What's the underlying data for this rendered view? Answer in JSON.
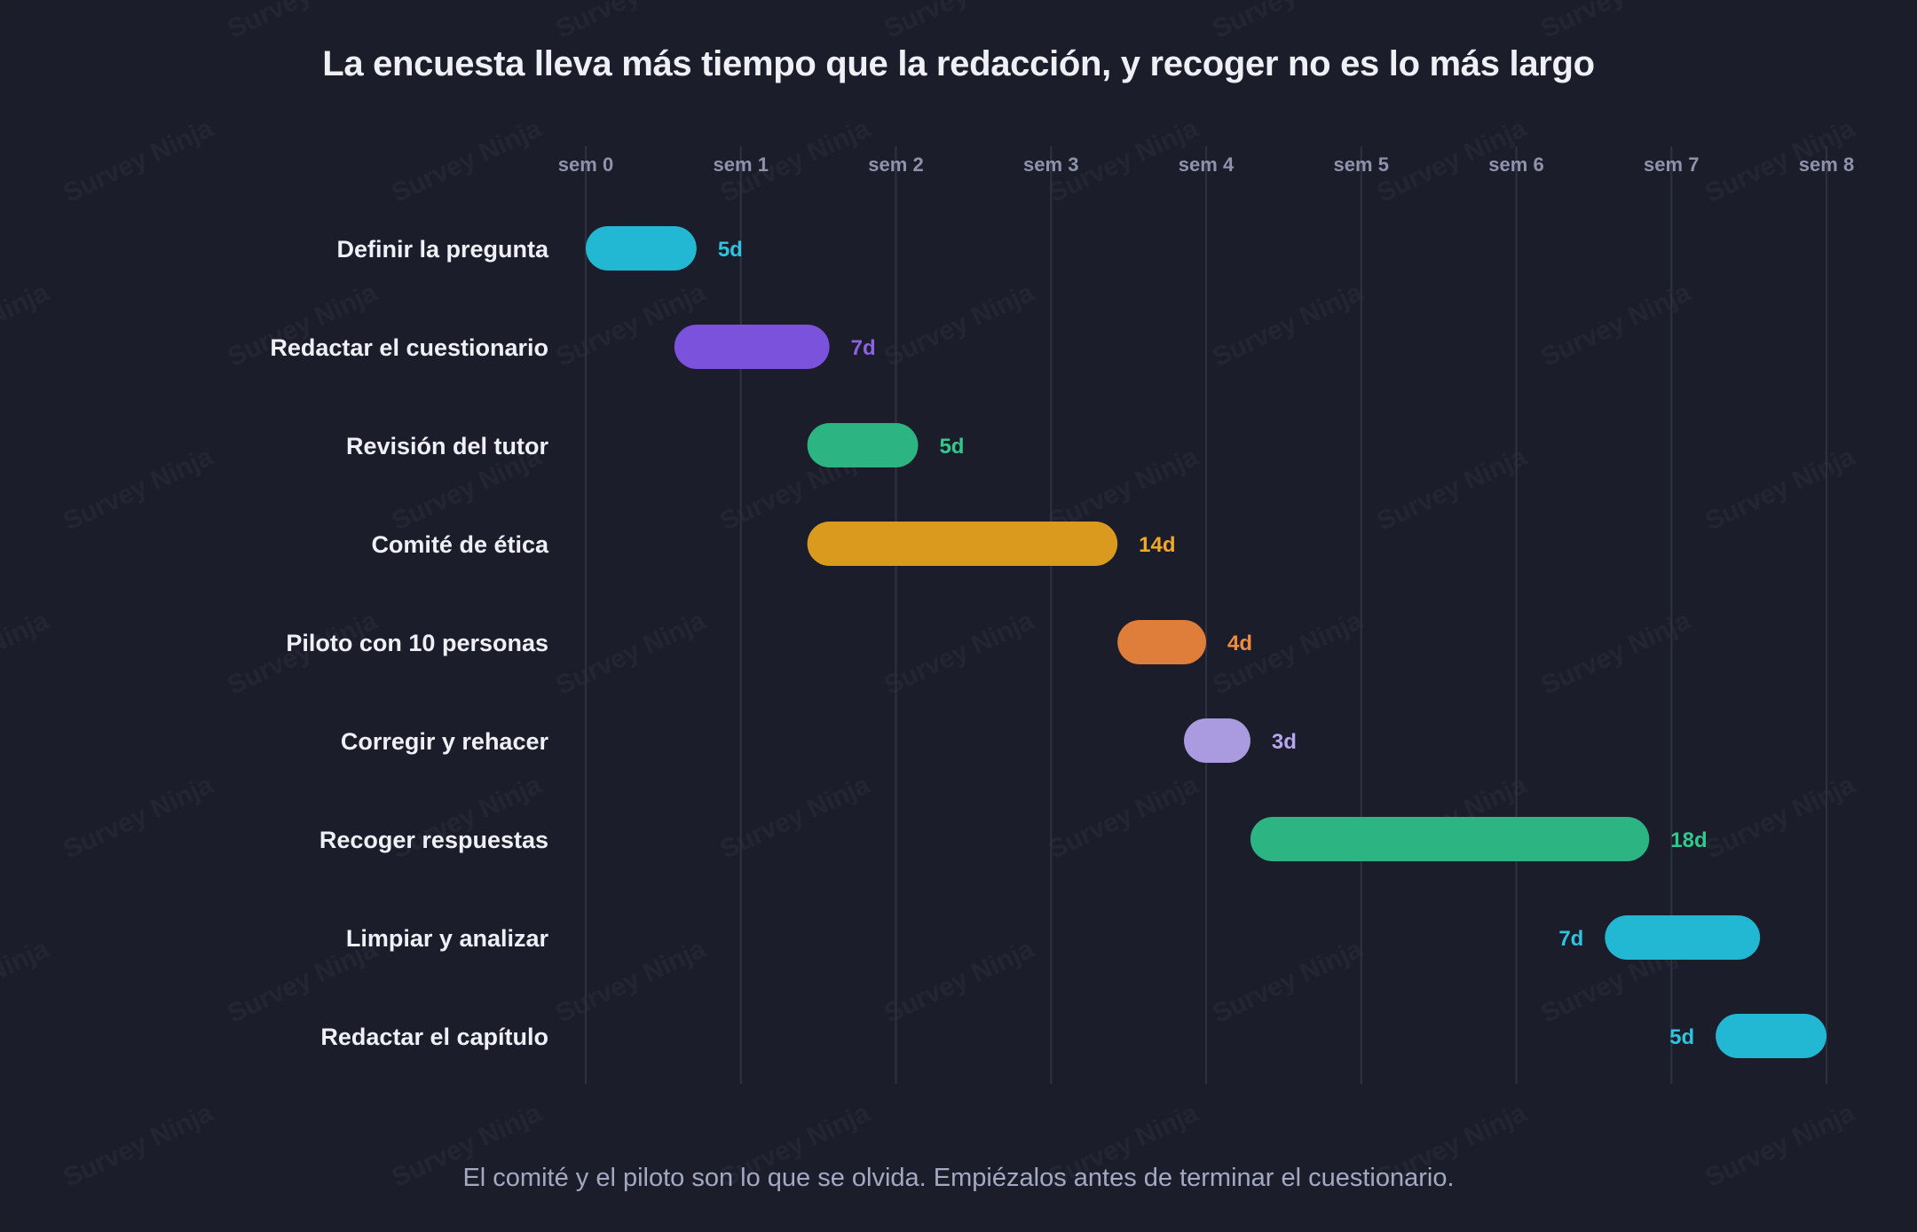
{
  "title": "La encuesta lleva más tiempo que la redacción, y recoger no es lo más largo",
  "caption": "El comité y el piloto son lo que se olvida. Empiézalos antes de terminar el cuestionario.",
  "watermark": "Survey Ninja",
  "chart_data": {
    "type": "gantt",
    "x_unit": "días",
    "x_ticks": [
      {
        "label": "sem 0",
        "day": 0
      },
      {
        "label": "sem 1",
        "day": 7
      },
      {
        "label": "sem 2",
        "day": 14
      },
      {
        "label": "sem 3",
        "day": 21
      },
      {
        "label": "sem 4",
        "day": 28
      },
      {
        "label": "sem 5",
        "day": 35
      },
      {
        "label": "sem 6",
        "day": 42
      },
      {
        "label": "sem 7",
        "day": 49
      },
      {
        "label": "sem 8",
        "day": 56
      }
    ],
    "xlim": [
      0,
      56
    ],
    "grid": true,
    "tasks": [
      {
        "name": "Definir la pregunta",
        "start": 0,
        "duration": 5,
        "label": "5d",
        "color": "#22b8d4",
        "label_color": "#2ec4e0",
        "label_side": "right"
      },
      {
        "name": "Redactar el cuestionario",
        "start": 4,
        "duration": 7,
        "label": "7d",
        "color": "#7b52dc",
        "label_color": "#8c63e6",
        "label_side": "right"
      },
      {
        "name": "Revisión del tutor",
        "start": 10,
        "duration": 5,
        "label": "5d",
        "color": "#2db483",
        "label_color": "#32c88e",
        "label_side": "right"
      },
      {
        "name": "Comité de ética",
        "start": 10,
        "duration": 14,
        "label": "14d",
        "color": "#d99a1e",
        "label_color": "#f2a824",
        "label_side": "right"
      },
      {
        "name": "Piloto con 10 personas",
        "start": 24,
        "duration": 4,
        "label": "4d",
        "color": "#df7d3a",
        "label_color": "#f08b3e",
        "label_side": "right"
      },
      {
        "name": "Corregir y rehacer",
        "start": 27,
        "duration": 3,
        "label": "3d",
        "color": "#aa9ae0",
        "label_color": "#b6a5ef",
        "label_side": "right"
      },
      {
        "name": "Recoger respuestas",
        "start": 30,
        "duration": 18,
        "label": "18d",
        "color": "#2db483",
        "label_color": "#32c88e",
        "label_side": "right"
      },
      {
        "name": "Limpiar y analizar",
        "start": 46,
        "duration": 7,
        "label": "7d",
        "color": "#22b8d4",
        "label_color": "#2ec4e0",
        "label_side": "left"
      },
      {
        "name": "Redactar el capítulo",
        "start": 51,
        "duration": 5,
        "label": "5d",
        "color": "#22b8d4",
        "label_color": "#2ec4e0",
        "label_side": "left"
      }
    ],
    "colors": {
      "background": "#1b1e2a",
      "grid": "#2e3240",
      "tick_label": "#8e93ab",
      "task_label": "#eef0f6"
    }
  }
}
